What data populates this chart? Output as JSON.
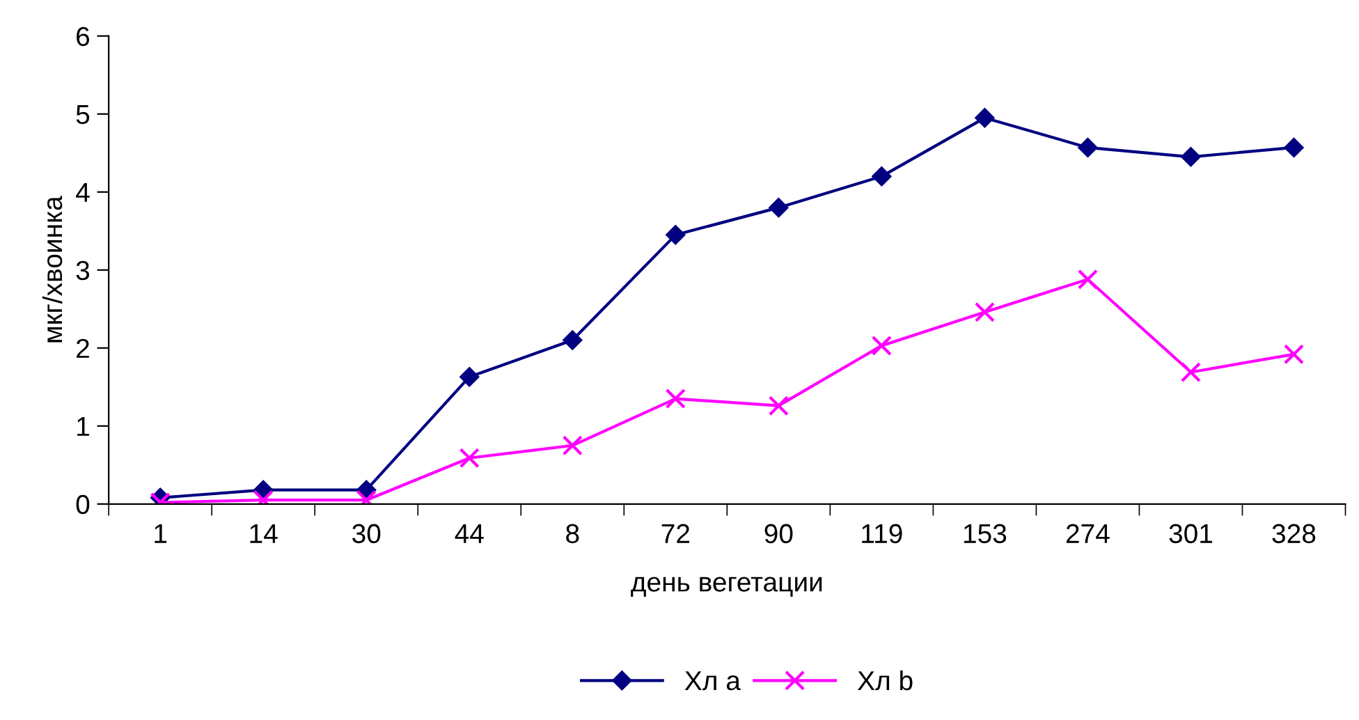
{
  "chart_data": {
    "type": "line",
    "xlabel": "день вегетации",
    "ylabel": "мкг/хвоинка",
    "categories": [
      "1",
      "14",
      "30",
      "44",
      "8",
      "72",
      "90",
      "119",
      "153",
      "274",
      "301",
      "328"
    ],
    "series": [
      {
        "name": "Хл a",
        "color": "#000080",
        "marker": "diamond",
        "values": [
          0.08,
          0.18,
          0.18,
          1.63,
          2.1,
          3.45,
          3.8,
          4.2,
          4.95,
          4.57,
          4.45,
          4.57
        ]
      },
      {
        "name": "Хл b",
        "color": "#ff00ff",
        "marker": "cross",
        "values": [
          0.02,
          0.05,
          0.05,
          0.59,
          0.75,
          1.35,
          1.26,
          2.03,
          2.46,
          2.88,
          1.69,
          1.92
        ]
      }
    ],
    "ylim": [
      0,
      6
    ],
    "yticks": [
      0,
      1,
      2,
      3,
      4,
      5,
      6
    ],
    "grid": false,
    "legend": "bottom",
    "line_style": "solid"
  }
}
